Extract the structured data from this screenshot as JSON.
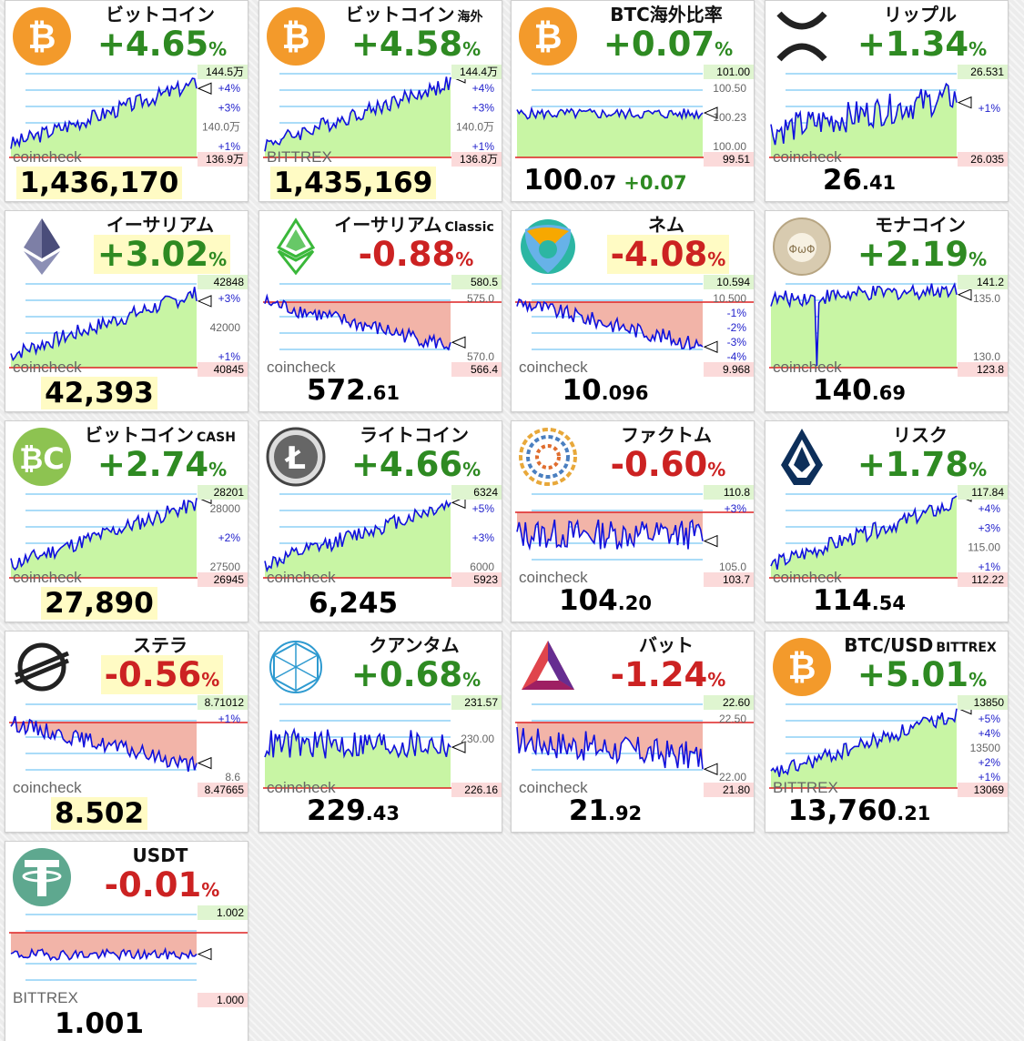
{
  "colors": {
    "up": "#2e8a22",
    "down": "#cc2222",
    "chart_line": "#1010dd",
    "fill_up": "#c8f5a4",
    "fill_down": "#f2b4a8",
    "grid": "#55b8f0",
    "baseline": "#dd2222",
    "highlight": "#fffbc4"
  },
  "cards": [
    {
      "name": "ビットコイン",
      "suffix": "",
      "change": "+4.65",
      "pct": "%",
      "dir": "up",
      "hl": false,
      "price_int": "1,436,170",
      "price_dec": "",
      "price_hl": true,
      "price_diff": "",
      "exchange": "coincheck",
      "icon": "bitcoin-icon",
      "labels": {
        "high": "144.5万",
        "low": "136.9万",
        "mid": [
          "+4%",
          "+3%",
          "140.0万",
          "+1%"
        ]
      },
      "chart_data": {
        "type": "line",
        "trend": "up",
        "high": 1445000,
        "low": 1369000,
        "last": 1436170
      }
    },
    {
      "name": "ビットコイン",
      "suffix": "海外",
      "change": "+4.58",
      "pct": "%",
      "dir": "up",
      "hl": false,
      "price_int": "1,435,169",
      "price_dec": "",
      "price_hl": true,
      "price_diff": "",
      "exchange": "BITTREX",
      "icon": "bitcoin-icon",
      "labels": {
        "high": "144.4万",
        "low": "136.8万",
        "mid": [
          "+4%",
          "+3%",
          "140.0万",
          "+1%"
        ]
      },
      "chart_data": {
        "type": "line",
        "trend": "up",
        "high": 1444000,
        "low": 1368000,
        "last": 1435169
      }
    },
    {
      "name": "BTC海外比率",
      "suffix": "",
      "change": "+0.07",
      "pct": "%",
      "dir": "up",
      "hl": false,
      "price_int": "100",
      "price_dec": ".07",
      "price_hl": false,
      "price_diff": "+0.07",
      "exchange": "",
      "icon": "bitcoin-icon",
      "labels": {
        "high": "101.00",
        "low": "99.51",
        "mid": [
          "100.50",
          "100.23",
          "100.00"
        ]
      },
      "chart_data": {
        "type": "line",
        "trend": "flat",
        "high": 101.0,
        "low": 99.51,
        "last": 100.07
      }
    },
    {
      "name": "リップル",
      "suffix": "",
      "change": "+1.34",
      "pct": "%",
      "dir": "up",
      "hl": false,
      "price_int": "26",
      "price_dec": ".41",
      "price_hl": false,
      "price_diff": "",
      "exchange": "coincheck",
      "icon": "ripple-icon",
      "labels": {
        "high": "26.531",
        "low": "26.035",
        "mid": [
          "+1%"
        ]
      },
      "chart_data": {
        "type": "line",
        "trend": "volatile-up",
        "high": 26.531,
        "low": 26.035,
        "last": 26.41
      }
    },
    {
      "name": "イーサリアム",
      "suffix": "",
      "change": "+3.02",
      "pct": "%",
      "dir": "up",
      "hl": true,
      "price_int": "42,393",
      "price_dec": "",
      "price_hl": true,
      "price_diff": "",
      "exchange": "coincheck",
      "icon": "ethereum-icon",
      "labels": {
        "high": "42848",
        "low": "40845",
        "mid": [
          "+3%",
          "42000",
          "+1%"
        ]
      },
      "chart_data": {
        "type": "line",
        "trend": "up",
        "high": 42848,
        "low": 40845,
        "last": 42393
      }
    },
    {
      "name": "イーサリアム",
      "suffix": "Classic",
      "change": "-0.88",
      "pct": "%",
      "dir": "down",
      "hl": false,
      "price_int": "572",
      "price_dec": ".61",
      "price_hl": false,
      "price_diff": "",
      "exchange": "coincheck",
      "icon": "ethereum-classic-icon",
      "labels": {
        "high": "580.5",
        "low": "566.4",
        "mid": [
          "575.0",
          "570.0"
        ]
      },
      "chart_data": {
        "type": "line",
        "trend": "down",
        "high": 580.5,
        "low": 566.4,
        "last": 572.61
      }
    },
    {
      "name": "ネム",
      "suffix": "",
      "change": "-4.08",
      "pct": "%",
      "dir": "down",
      "hl": true,
      "price_int": "10",
      "price_dec": ".096",
      "price_hl": false,
      "price_diff": "",
      "exchange": "coincheck",
      "icon": "nem-icon",
      "labels": {
        "high": "10.594",
        "low": "9.968",
        "mid": [
          "10.500",
          "-1%",
          "-2%",
          "-3%",
          "-4%"
        ]
      },
      "chart_data": {
        "type": "line",
        "trend": "down",
        "high": 10.594,
        "low": 9.968,
        "last": 10.096
      }
    },
    {
      "name": "モナコイン",
      "suffix": "",
      "change": "+2.19",
      "pct": "%",
      "dir": "up",
      "hl": false,
      "price_int": "140",
      "price_dec": ".69",
      "price_hl": false,
      "price_diff": "",
      "exchange": "coincheck",
      "icon": "monacoin-icon",
      "labels": {
        "high": "141.2",
        "low": "123.8",
        "mid": [
          "135.0",
          "130.0"
        ]
      },
      "chart_data": {
        "type": "line",
        "trend": "spike-down",
        "high": 141.2,
        "low": 123.8,
        "last": 140.69
      }
    },
    {
      "name": "ビットコイン",
      "suffix": "CASH",
      "change": "+2.74",
      "pct": "%",
      "dir": "up",
      "hl": false,
      "price_int": "27,890",
      "price_dec": "",
      "price_hl": true,
      "price_diff": "",
      "exchange": "coincheck",
      "icon": "bitcoin-cash-icon",
      "labels": {
        "high": "28201",
        "low": "26945",
        "mid": [
          "28000",
          "+2%",
          "27500"
        ]
      },
      "chart_data": {
        "type": "line",
        "trend": "up",
        "high": 28201,
        "low": 26945,
        "last": 27890
      }
    },
    {
      "name": "ライトコイン",
      "suffix": "",
      "change": "+4.66",
      "pct": "%",
      "dir": "up",
      "hl": false,
      "price_int": "6,245",
      "price_dec": "",
      "price_hl": false,
      "price_diff": "",
      "exchange": "coincheck",
      "icon": "litecoin-icon",
      "labels": {
        "high": "6324",
        "low": "5923",
        "mid": [
          "+5%",
          "+3%",
          "6000"
        ]
      },
      "chart_data": {
        "type": "line",
        "trend": "up",
        "high": 6324,
        "low": 5923,
        "last": 6245
      }
    },
    {
      "name": "ファクトム",
      "suffix": "",
      "change": "-0.60",
      "pct": "%",
      "dir": "down",
      "hl": false,
      "price_int": "104",
      "price_dec": ".20",
      "price_hl": false,
      "price_diff": "",
      "exchange": "coincheck",
      "icon": "factom-icon",
      "labels": {
        "high": "110.8",
        "low": "103.7",
        "mid": [
          "+3%",
          "105.0"
        ]
      },
      "chart_data": {
        "type": "line",
        "trend": "volatile",
        "high": 110.8,
        "low": 103.7,
        "last": 104.2
      }
    },
    {
      "name": "リスク",
      "suffix": "",
      "change": "+1.78",
      "pct": "%",
      "dir": "up",
      "hl": false,
      "price_int": "114",
      "price_dec": ".54",
      "price_hl": false,
      "price_diff": "",
      "exchange": "coincheck",
      "icon": "lisk-icon",
      "labels": {
        "high": "117.84",
        "low": "112.22",
        "mid": [
          "+4%",
          "+3%",
          "115.00",
          "+1%"
        ]
      },
      "chart_data": {
        "type": "line",
        "trend": "up",
        "high": 117.84,
        "low": 112.22,
        "last": 114.54
      }
    },
    {
      "name": "ステラ",
      "suffix": "",
      "change": "-0.56",
      "pct": "%",
      "dir": "down",
      "hl": true,
      "price_int": "8.502",
      "price_dec": "",
      "price_hl": true,
      "price_diff": "",
      "exchange": "coincheck",
      "icon": "stellar-icon",
      "labels": {
        "high": "8.71012",
        "low": "8.47665",
        "mid": [
          "+1%",
          "8.6"
        ]
      },
      "chart_data": {
        "type": "line",
        "trend": "down",
        "high": 8.71012,
        "low": 8.47665,
        "last": 8.502
      }
    },
    {
      "name": "クアンタム",
      "suffix": "",
      "change": "+0.68",
      "pct": "%",
      "dir": "up",
      "hl": false,
      "price_int": "229",
      "price_dec": ".43",
      "price_hl": false,
      "price_diff": "",
      "exchange": "coincheck",
      "icon": "qtum-icon",
      "labels": {
        "high": "231.57",
        "low": "226.16",
        "mid": [
          "230.00"
        ]
      },
      "chart_data": {
        "type": "line",
        "trend": "volatile",
        "high": 231.57,
        "low": 226.16,
        "last": 229.43
      }
    },
    {
      "name": "バット",
      "suffix": "",
      "change": "-1.24",
      "pct": "%",
      "dir": "down",
      "hl": false,
      "price_int": "21",
      "price_dec": ".92",
      "price_hl": false,
      "price_diff": "",
      "exchange": "coincheck",
      "icon": "bat-icon",
      "labels": {
        "high": "22.60",
        "low": "21.80",
        "mid": [
          "22.50",
          "22.00"
        ]
      },
      "chart_data": {
        "type": "line",
        "trend": "volatile-down",
        "high": 22.6,
        "low": 21.8,
        "last": 21.92
      }
    },
    {
      "name": "BTC/USD",
      "suffix": "BITTREX",
      "change": "+5.01",
      "pct": "%",
      "dir": "up",
      "hl": false,
      "price_int": "13,760",
      "price_dec": ".21",
      "price_hl": false,
      "price_diff": "",
      "exchange": "BITTREX",
      "icon": "bitcoin-icon",
      "labels": {
        "high": "13850",
        "low": "13069",
        "mid": [
          "+5%",
          "+4%",
          "13500",
          "+2%",
          "+1%"
        ]
      },
      "chart_data": {
        "type": "line",
        "trend": "up",
        "high": 13850,
        "low": 13069,
        "last": 13760.21
      }
    },
    {
      "name": "USDT",
      "suffix": "",
      "change": "-0.01",
      "pct": "%",
      "dir": "down",
      "hl": false,
      "price_int": "1.001",
      "price_dec": "",
      "price_hl": false,
      "price_diff": "",
      "exchange": "BITTREX",
      "icon": "tether-icon",
      "labels": {
        "high": "1.002",
        "low": "1.000",
        "mid": []
      },
      "chart_data": {
        "type": "line",
        "trend": "flat",
        "high": 1.002,
        "low": 1.0,
        "last": 1.001
      }
    }
  ]
}
